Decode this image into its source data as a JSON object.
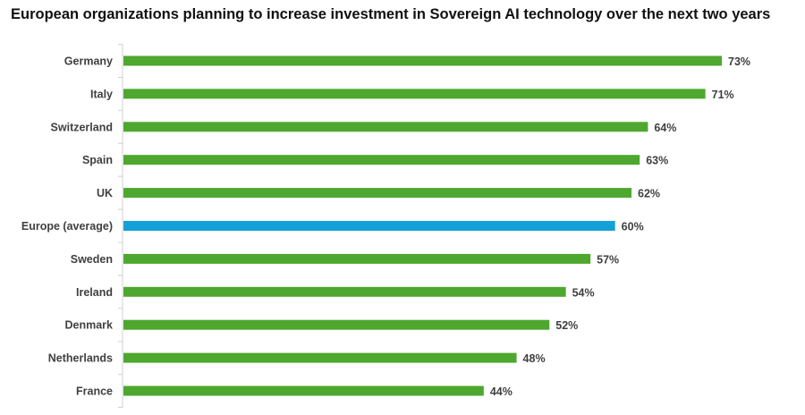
{
  "chart_data": {
    "type": "bar",
    "orientation": "horizontal",
    "title": "European organizations planning to increase investment in Sovereign AI technology over the next two years",
    "categories": [
      "Germany",
      "Italy",
      "Switzerland",
      "Spain",
      "UK",
      "Europe (average)",
      "Sweden",
      "Ireland",
      "Denmark",
      "Netherlands",
      "France"
    ],
    "values": [
      73,
      71,
      64,
      63,
      62,
      60,
      57,
      54,
      52,
      48,
      44
    ],
    "data_labels": [
      "73%",
      "71%",
      "64%",
      "63%",
      "62%",
      "60%",
      "57%",
      "54%",
      "52%",
      "48%",
      "44%"
    ],
    "unit": "%",
    "xlim": [
      0,
      73
    ],
    "grid": false,
    "legend": "none",
    "colors": {
      "default": "#4ea72e",
      "highlight": "#15a0d8"
    },
    "highlight_category": "Europe (average)"
  }
}
